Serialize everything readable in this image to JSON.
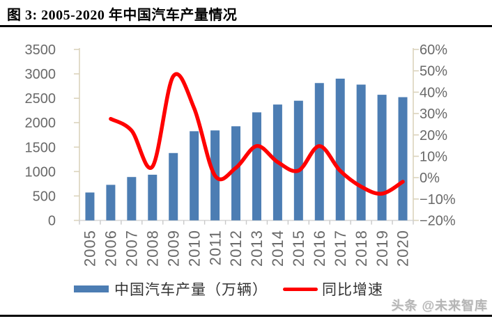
{
  "header": {
    "title": "图 3:  2005-2020 年中国汽车产量情况"
  },
  "watermark": "头条 @未来智库",
  "chart_data": {
    "type": "bar",
    "subtype": "bar+line combo, dual axis",
    "title": "图 3: 2005-2020 年中国汽车产量情况",
    "categories": [
      "2005",
      "2006",
      "2007",
      "2008",
      "2009",
      "2010",
      "2011",
      "2012",
      "2013",
      "2014",
      "2015",
      "2016",
      "2017",
      "2018",
      "2019",
      "2020"
    ],
    "series": [
      {
        "name": "中国汽车产量（万辆）",
        "type": "bar",
        "axis": "left",
        "color": "#4C7DB3",
        "values": [
          571,
          728,
          888,
          935,
          1379,
          1826,
          1842,
          1927,
          2212,
          2372,
          2450,
          2812,
          2902,
          2780,
          2572,
          2523
        ]
      },
      {
        "name": "同比增速",
        "type": "line",
        "axis": "right",
        "color": "#FF0000",
        "smooth": true,
        "values": [
          null,
          27.5,
          22.0,
          5.2,
          47.5,
          32.4,
          0.9,
          4.6,
          14.8,
          7.3,
          3.3,
          14.8,
          3.2,
          -4.2,
          -7.5,
          -1.9
        ]
      }
    ],
    "left_axis": {
      "min": 0,
      "max": 3500,
      "tick_labels": [
        "0",
        "500",
        "1000",
        "1500",
        "2000",
        "2500",
        "3000",
        "3500"
      ]
    },
    "right_axis": {
      "min": -20,
      "max": 60,
      "tick_labels": [
        "−20%",
        "−10%",
        "0%",
        "10%",
        "20%",
        "30%",
        "40%",
        "50%",
        "60%"
      ]
    },
    "grid": false,
    "legend_position": "bottom",
    "colors": {
      "value_axis_line": "#DBD3BC",
      "category_axis_line": "#D6D6D6",
      "category_tick": "#C9C9C9",
      "tick_text": "#696969"
    }
  }
}
